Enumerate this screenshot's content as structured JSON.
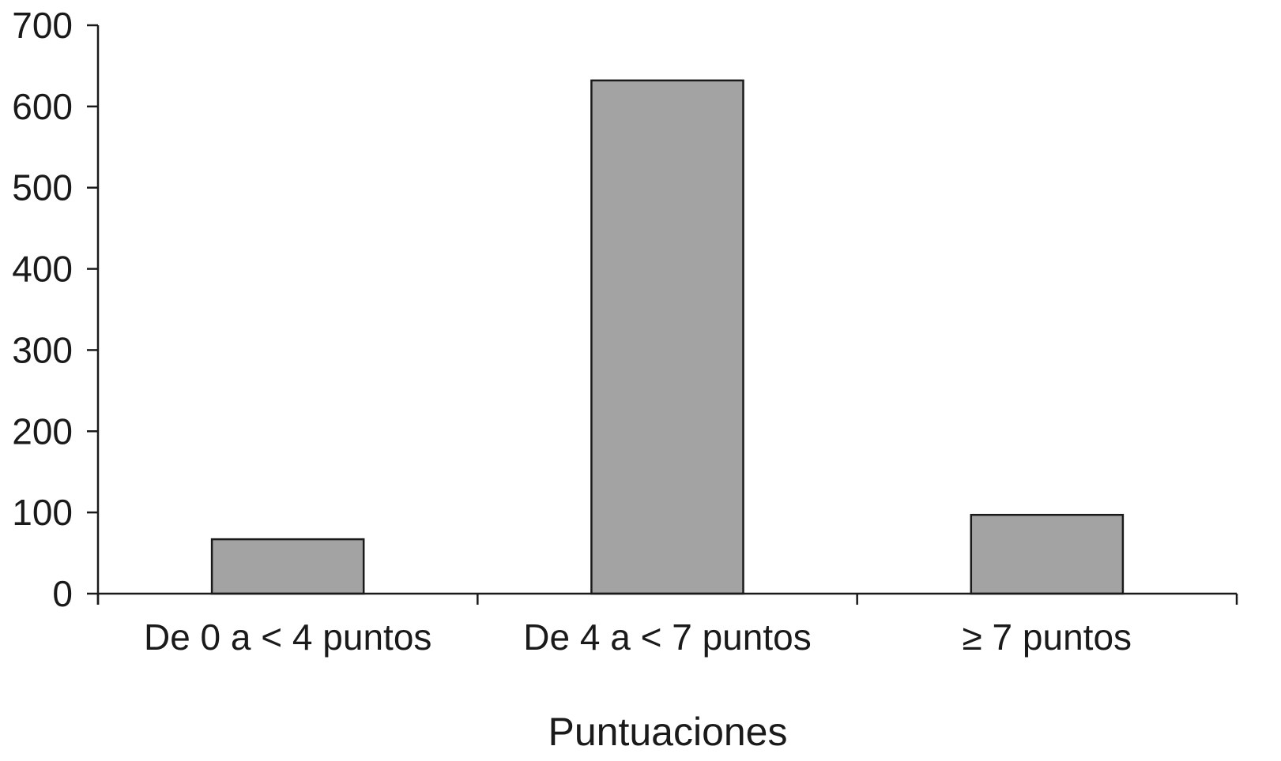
{
  "chart_data": {
    "type": "bar",
    "categories": [
      "De 0 a < 4 puntos",
      "De 4 a < 7 puntos",
      "≥ 7 puntos"
    ],
    "values": [
      67,
      632,
      97
    ],
    "xlabel": "Puntuaciones",
    "ylabel": "",
    "ylim": [
      0,
      700
    ],
    "yticks": [
      0,
      100,
      200,
      300,
      400,
      500,
      600,
      700
    ],
    "grid": false,
    "legend": "none",
    "bar_color": "#a3a3a3",
    "edge_color": "#1a1a1a"
  }
}
